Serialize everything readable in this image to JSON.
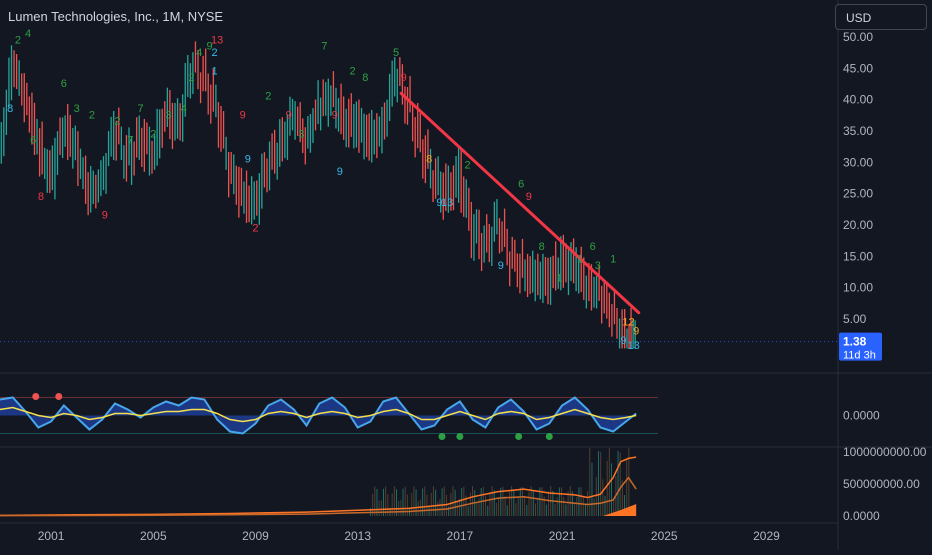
{
  "header": {
    "title": "Lumen Technologies, Inc., 1M, NYSE",
    "currency": "USD"
  },
  "price_badge": {
    "price": "1.38",
    "countdown": "11d 3h"
  },
  "colors": {
    "background": "#131722",
    "up": "#26a69a",
    "down": "#ef5350",
    "trendline": "#f23645",
    "badge": "#2962ff",
    "seq_green": "#2ea043",
    "seq_red": "#f23645",
    "seq_blue": "#39b8e8",
    "osc_line": "#48a6ec",
    "osc_signal": "#f7e04b",
    "vol_line": "#ff7424"
  },
  "chart_data": [
    {
      "type": "line",
      "name": "price-pane",
      "x_ticks": [
        "2001",
        "2005",
        "2009",
        "2013",
        "2017",
        "2021",
        "2025",
        "2029"
      ],
      "y_ticks": [
        "50.00",
        "45.00",
        "40.00",
        "35.00",
        "30.00",
        "25.00",
        "20.00",
        "15.00",
        "10.00",
        "5.00"
      ],
      "ylim": [
        0,
        52
      ],
      "xlim": [
        1999.0,
        2031.8
      ],
      "series": [
        {
          "x": [
            1999.0,
            1999.5,
            2000.0,
            2000.5,
            2001.0,
            2001.5,
            2002.0,
            2002.5,
            2003.0,
            2003.5,
            2004.0,
            2004.5,
            2005.0,
            2005.5,
            2006.0,
            2006.5,
            2007.0,
            2007.5,
            2008.0,
            2008.5,
            2009.0,
            2009.5,
            2010.0,
            2010.5,
            2011.0,
            2011.5,
            2012.0,
            2012.5,
            2013.0,
            2013.5,
            2014.0,
            2014.5,
            2015.0,
            2015.5,
            2016.0,
            2016.5,
            2017.0,
            2017.5,
            2018.0,
            2018.5,
            2019.0,
            2019.5,
            2020.0,
            2020.5,
            2021.0,
            2021.5,
            2022.0,
            2022.5,
            2023.0,
            2023.5,
            2023.9
          ],
          "values": [
            32,
            45,
            41,
            33,
            27,
            36,
            32,
            24,
            28,
            35,
            30,
            34,
            31,
            38,
            36,
            45,
            44,
            38,
            29,
            25,
            23,
            30,
            33,
            37,
            34,
            39,
            40,
            37,
            36,
            33,
            36,
            44,
            39,
            33,
            27,
            25,
            28,
            19,
            17,
            20,
            15,
            13,
            11,
            12,
            14,
            13,
            11,
            9,
            5,
            2.5,
            1.38
          ]
        }
      ],
      "trendline": {
        "from": [
          2014.7,
          41
        ],
        "to": [
          2024.0,
          6
        ]
      },
      "sequential_counts": [
        {
          "x": 1999.4,
          "y": 38,
          "label": "8",
          "color": "blue"
        },
        {
          "x": 1999.7,
          "y": 49,
          "label": "2",
          "color": "green"
        },
        {
          "x": 2000.1,
          "y": 50,
          "label": "4",
          "color": "green"
        },
        {
          "x": 2000.3,
          "y": 33,
          "label": "6",
          "color": "green"
        },
        {
          "x": 2000.6,
          "y": 24,
          "label": "8",
          "color": "red"
        },
        {
          "x": 2001.5,
          "y": 42,
          "label": "6",
          "color": "green"
        },
        {
          "x": 2002.0,
          "y": 38,
          "label": "3",
          "color": "green"
        },
        {
          "x": 2002.6,
          "y": 37,
          "label": "2",
          "color": "green"
        },
        {
          "x": 2003.1,
          "y": 21,
          "label": "9",
          "color": "red"
        },
        {
          "x": 2003.6,
          "y": 36,
          "label": "2",
          "color": "green"
        },
        {
          "x": 2004.1,
          "y": 33,
          "label": "7",
          "color": "green"
        },
        {
          "x": 2004.5,
          "y": 38,
          "label": "7",
          "color": "green"
        },
        {
          "x": 2005.0,
          "y": 34,
          "label": "2",
          "color": "green"
        },
        {
          "x": 2005.6,
          "y": 37,
          "label": "3",
          "color": "green"
        },
        {
          "x": 2006.2,
          "y": 38,
          "label": "4",
          "color": "green"
        },
        {
          "x": 2006.5,
          "y": 43,
          "label": "2",
          "color": "green"
        },
        {
          "x": 2006.8,
          "y": 47,
          "label": "4",
          "color": "green"
        },
        {
          "x": 2007.2,
          "y": 48,
          "label": "9",
          "color": "green"
        },
        {
          "x": 2007.5,
          "y": 49,
          "label": "13",
          "color": "red"
        },
        {
          "x": 2007.4,
          "y": 44,
          "label": "1",
          "color": "blue"
        },
        {
          "x": 2007.4,
          "y": 47,
          "label": "2",
          "color": "blue"
        },
        {
          "x": 2008.5,
          "y": 37,
          "label": "9",
          "color": "red"
        },
        {
          "x": 2008.7,
          "y": 30,
          "label": "9",
          "color": "blue"
        },
        {
          "x": 2009.0,
          "y": 19,
          "label": "2",
          "color": "red"
        },
        {
          "x": 2009.5,
          "y": 40,
          "label": "2",
          "color": "green"
        },
        {
          "x": 2010.3,
          "y": 37,
          "label": "9",
          "color": "red"
        },
        {
          "x": 2010.8,
          "y": 34,
          "label": "3",
          "color": "green"
        },
        {
          "x": 2011.7,
          "y": 48,
          "label": "7",
          "color": "green"
        },
        {
          "x": 2012.1,
          "y": 37,
          "label": "9",
          "color": "red"
        },
        {
          "x": 2012.3,
          "y": 28,
          "label": "9",
          "color": "blue"
        },
        {
          "x": 2012.8,
          "y": 44,
          "label": "2",
          "color": "green"
        },
        {
          "x": 2013.3,
          "y": 43,
          "label": "8",
          "color": "green"
        },
        {
          "x": 2014.5,
          "y": 47,
          "label": "5",
          "color": "green"
        },
        {
          "x": 2014.8,
          "y": 43,
          "label": "9",
          "color": "red"
        },
        {
          "x": 2016.2,
          "y": 23,
          "label": "9",
          "color": "blue"
        },
        {
          "x": 2016.5,
          "y": 23,
          "label": "13",
          "color": "blue"
        },
        {
          "x": 2015.8,
          "y": 30,
          "label": "8",
          "color": "orange"
        },
        {
          "x": 2017.3,
          "y": 29,
          "label": "2",
          "color": "green"
        },
        {
          "x": 2018.6,
          "y": 13,
          "label": "9",
          "color": "blue"
        },
        {
          "x": 2019.4,
          "y": 26,
          "label": "6",
          "color": "green"
        },
        {
          "x": 2019.7,
          "y": 24,
          "label": "9",
          "color": "red"
        },
        {
          "x": 2020.2,
          "y": 16,
          "label": "8",
          "color": "green"
        },
        {
          "x": 2020.9,
          "y": 11,
          "label": "1",
          "color": "green"
        },
        {
          "x": 2021.7,
          "y": 14,
          "label": "1",
          "color": "green"
        },
        {
          "x": 2022.2,
          "y": 16,
          "label": "6",
          "color": "green"
        },
        {
          "x": 2022.4,
          "y": 13,
          "label": "3",
          "color": "green"
        },
        {
          "x": 2023.0,
          "y": 14,
          "label": "1",
          "color": "green"
        },
        {
          "x": 2023.6,
          "y": 4,
          "label": "12",
          "color": "orange"
        },
        {
          "x": 2023.9,
          "y": 2.5,
          "label": "9",
          "color": "orange"
        },
        {
          "x": 2023.4,
          "y": 1,
          "label": "9",
          "color": "blue"
        },
        {
          "x": 2023.8,
          "y": 0.2,
          "label": "13",
          "color": "blue"
        }
      ]
    },
    {
      "type": "area",
      "name": "oscillator-pane",
      "y_ticks": [
        "0.0000"
      ],
      "x": [
        1999.0,
        1999.5,
        2000.0,
        2000.5,
        2001.0,
        2001.5,
        2002.0,
        2002.5,
        2003.0,
        2003.5,
        2004.0,
        2004.5,
        2005.0,
        2005.5,
        2006.0,
        2006.5,
        2007.0,
        2007.5,
        2008.0,
        2008.5,
        2009.0,
        2009.5,
        2010.0,
        2010.5,
        2011.0,
        2011.5,
        2012.0,
        2012.5,
        2013.0,
        2013.5,
        2014.0,
        2014.5,
        2015.0,
        2015.5,
        2016.0,
        2016.5,
        2017.0,
        2017.5,
        2018.0,
        2018.5,
        2019.0,
        2019.5,
        2020.0,
        2020.5,
        2021.0,
        2021.5,
        2022.0,
        2022.5,
        2023.0,
        2023.5,
        2023.9
      ],
      "series": [
        {
          "values": [
            0.8,
            0.9,
            0.2,
            -0.6,
            -0.3,
            0.5,
            -0.1,
            -0.7,
            -0.2,
            0.6,
            0.3,
            -0.1,
            0.4,
            0.7,
            0.5,
            0.9,
            0.8,
            -0.2,
            -0.8,
            -0.9,
            -0.4,
            0.5,
            0.8,
            0.3,
            -0.5,
            0.6,
            0.9,
            0.4,
            -0.6,
            -0.3,
            0.7,
            0.9,
            0.1,
            -0.7,
            -0.5,
            0.3,
            0.7,
            -0.2,
            -0.6,
            0.4,
            0.8,
            0.2,
            -0.7,
            -0.4,
            0.5,
            0.9,
            0.3,
            -0.6,
            -0.8,
            -0.3,
            0.1
          ]
        },
        {
          "values": [
            0.3,
            0.4,
            0.2,
            0.0,
            -0.1,
            0.1,
            0.0,
            -0.2,
            -0.1,
            0.1,
            0.1,
            0.0,
            0.1,
            0.2,
            0.2,
            0.3,
            0.3,
            0.1,
            -0.2,
            -0.3,
            -0.2,
            0.1,
            0.2,
            0.1,
            -0.1,
            0.1,
            0.2,
            0.1,
            -0.1,
            0.0,
            0.2,
            0.3,
            0.1,
            -0.2,
            -0.2,
            0.0,
            0.2,
            0.0,
            -0.2,
            0.1,
            0.2,
            0.1,
            -0.2,
            -0.1,
            0.1,
            0.3,
            0.1,
            -0.1,
            -0.2,
            -0.1,
            0.0
          ]
        }
      ]
    },
    {
      "type": "line",
      "name": "volume-pane",
      "y_ticks": [
        "1000000000.00",
        "500000000.00",
        "0.0000"
      ],
      "ylim": [
        0,
        1000000000
      ],
      "x": [
        1999.0,
        2002.0,
        2005.0,
        2008.0,
        2011.0,
        2013.0,
        2015.0,
        2016.5,
        2017.5,
        2018.5,
        2019.5,
        2020.5,
        2021.5,
        2022.0,
        2022.5,
        2023.0,
        2023.3,
        2023.6,
        2023.9
      ],
      "series": [
        {
          "values": [
            10000000,
            20000000,
            25000000,
            40000000,
            60000000,
            90000000,
            120000000,
            180000000,
            300000000,
            380000000,
            420000000,
            360000000,
            330000000,
            290000000,
            340000000,
            600000000,
            850000000,
            900000000,
            920000000
          ]
        },
        {
          "values": [
            5000000,
            8000000,
            12000000,
            20000000,
            30000000,
            50000000,
            70000000,
            110000000,
            200000000,
            280000000,
            300000000,
            240000000,
            200000000,
            180000000,
            200000000,
            250000000,
            450000000,
            600000000,
            420000000
          ]
        }
      ]
    }
  ]
}
